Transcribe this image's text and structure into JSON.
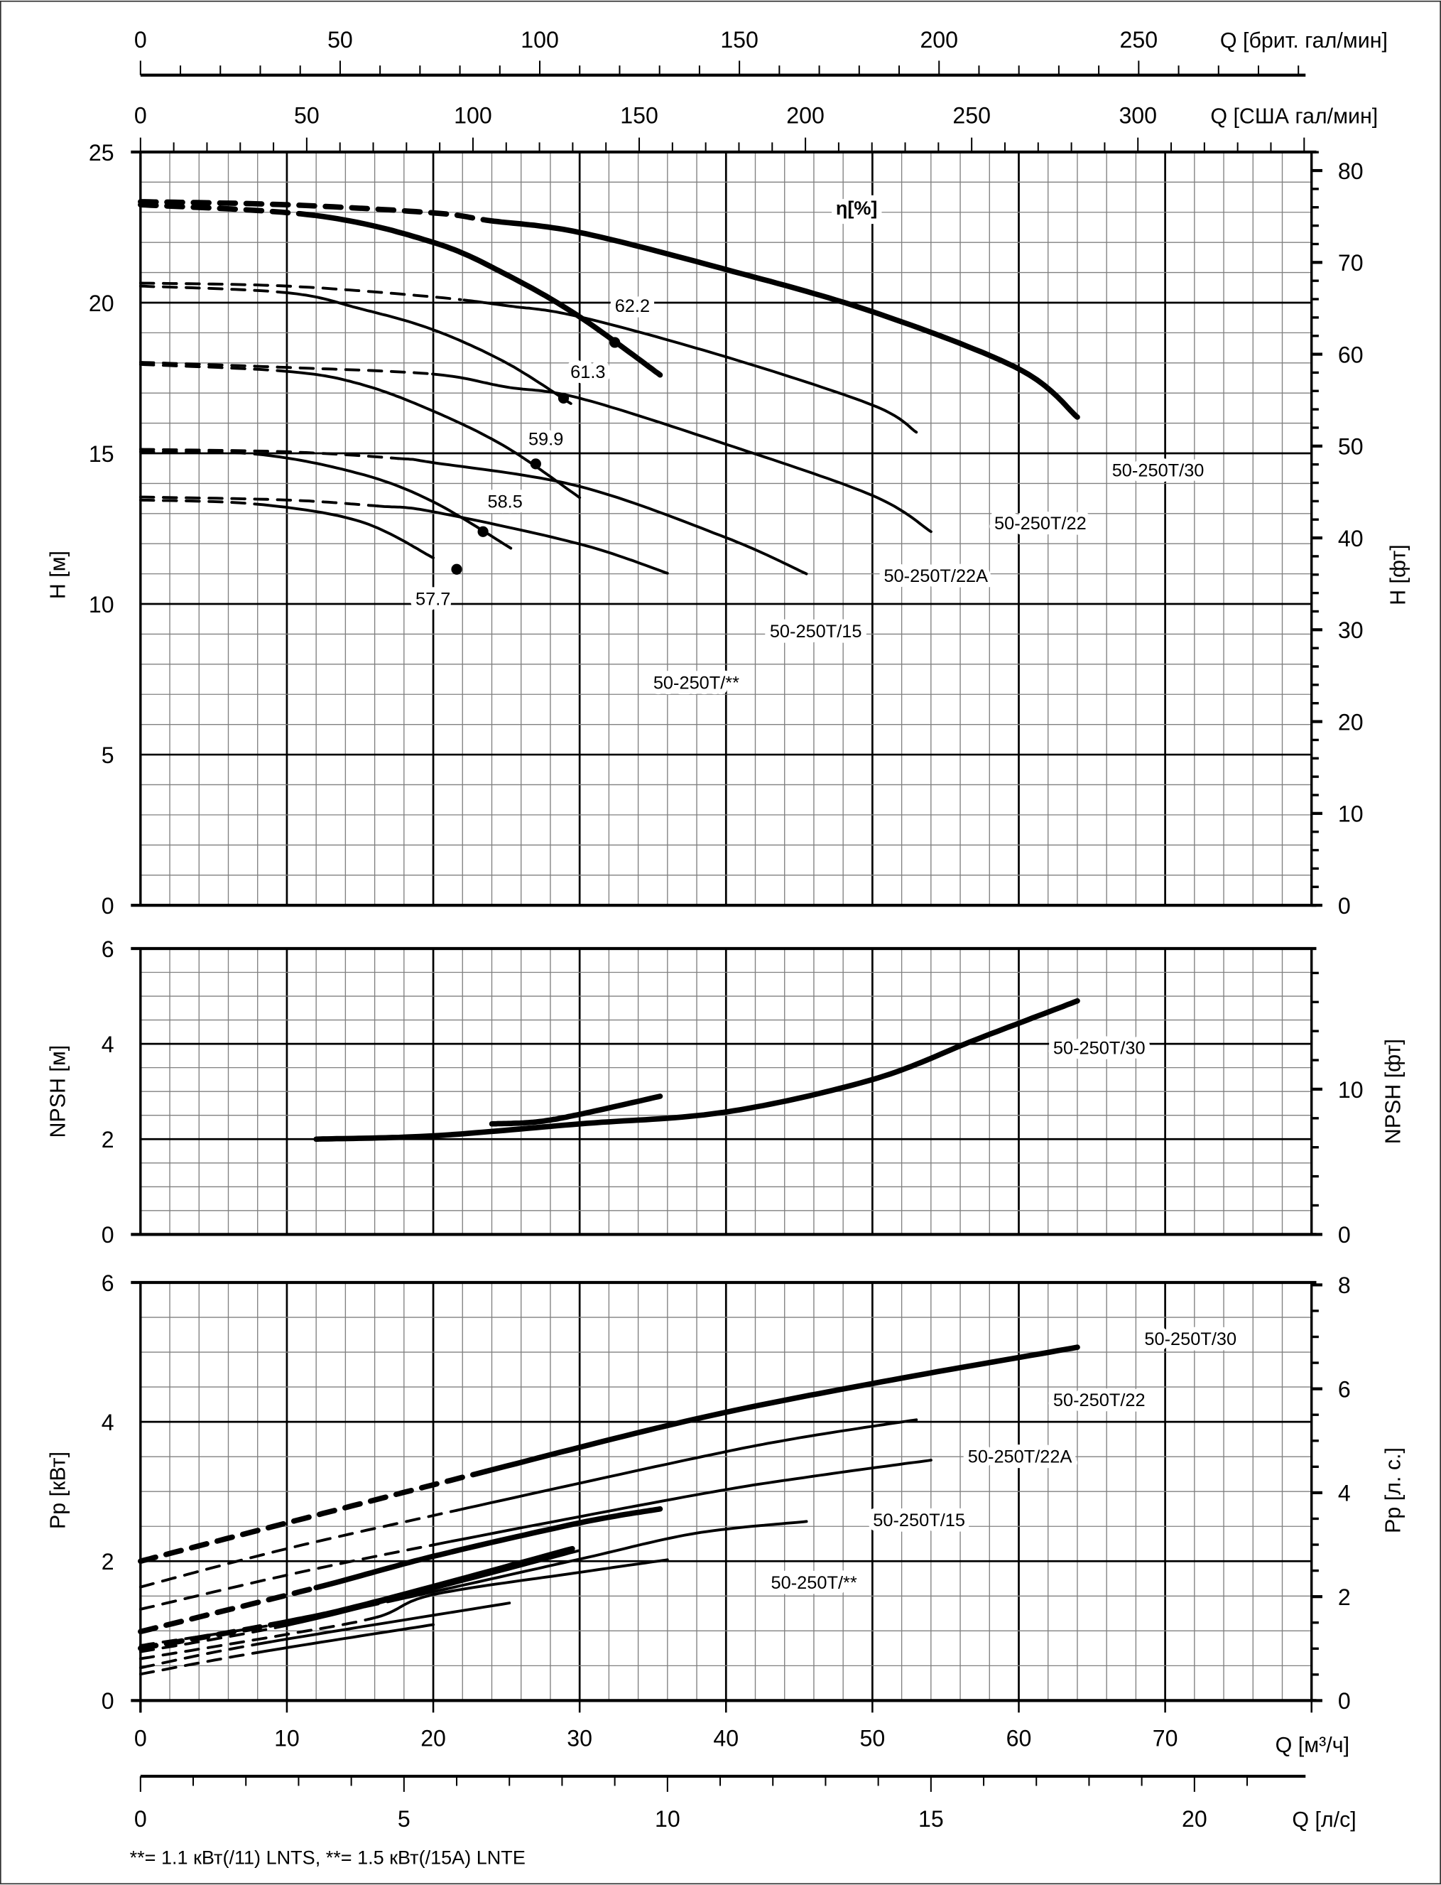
{
  "chart_data": {
    "type": "line",
    "top_axes": {
      "uk_gpm": {
        "label": "Q [брит. гал/мин]",
        "ticks": [
          0,
          50,
          100,
          150,
          200,
          250
        ]
      },
      "us_gpm": {
        "label": "Q [США гал/мин]",
        "ticks": [
          0,
          50,
          100,
          150,
          200,
          250,
          300
        ]
      }
    },
    "bottom_axes": {
      "m3h": {
        "label": "Q [м³/ч]",
        "ticks": [
          0,
          10,
          20,
          30,
          40,
          50,
          60,
          70
        ],
        "xlim": [
          0,
          80
        ]
      },
      "ls": {
        "label": "Q [л/с]",
        "ticks": [
          0,
          5,
          10,
          15,
          20
        ]
      }
    },
    "grid": true,
    "head": {
      "ylabel": "H [м]",
      "ylabel_right": "H [фт]",
      "ylim": [
        0,
        25
      ],
      "yticks": [
        0,
        5,
        10,
        15,
        20,
        25
      ],
      "yticks_right": [
        0,
        10,
        20,
        30,
        40,
        50,
        60,
        70,
        80
      ],
      "efficiency_label": "η[%]",
      "series": [
        {
          "name": "50-250T/30",
          "bold": true,
          "solid_from": 23.9,
          "points": [
            [
              0,
              23.35
            ],
            [
              10,
              23.25
            ],
            [
              20,
              22.98
            ],
            [
              23.9,
              22.72
            ],
            [
              30,
              22.33
            ],
            [
              40,
              21.1
            ],
            [
              50,
              19.7
            ],
            [
              60,
              17.8
            ],
            [
              64,
              16.2
            ]
          ]
        },
        {
          "name": "50-250T/22",
          "bold": false,
          "solid_from": 21.9,
          "points": [
            [
              0,
              20.65
            ],
            [
              10,
              20.55
            ],
            [
              20,
              20.19
            ],
            [
              25,
              19.9
            ],
            [
              30,
              19.53
            ],
            [
              40,
              18.2
            ],
            [
              50,
              16.6
            ],
            [
              53,
              15.7
            ]
          ]
        },
        {
          "name": "50-250T/22A",
          "bold": false,
          "solid_from": 19.95,
          "points": [
            [
              0,
              18.02
            ],
            [
              10,
              17.85
            ],
            [
              19.95,
              17.63
            ],
            [
              25,
              17.2
            ],
            [
              30,
              16.83
            ],
            [
              40,
              15.3
            ],
            [
              50,
              13.6
            ],
            [
              54,
              12.4
            ]
          ]
        },
        {
          "name": "50-250T/15",
          "bold": false,
          "solid_from": 17.6,
          "points": [
            [
              0,
              15.13
            ],
            [
              10,
              15.05
            ],
            [
              17.6,
              14.83
            ],
            [
              20,
              14.69
            ],
            [
              30,
              13.9
            ],
            [
              40,
              12.2
            ],
            [
              45.5,
              11.0
            ]
          ]
        },
        {
          "name": "50-250T/**",
          "bold": false,
          "solid_from": 16.2,
          "points": [
            [
              0,
              13.55
            ],
            [
              10,
              13.45
            ],
            [
              16.2,
              13.25
            ],
            [
              20,
              13.06
            ],
            [
              30,
              11.99
            ],
            [
              36,
              11.02
            ]
          ]
        },
        {
          "bold": true,
          "solid_from": 12,
          "points": [
            [
              0,
              23.25
            ],
            [
              12,
              22.89
            ],
            [
              20,
              22.0
            ],
            [
              25,
              20.93
            ],
            [
              30,
              19.53
            ],
            [
              35.5,
              17.6
            ]
          ],
          "bep": {
            "q": 32.4,
            "h": 18.68,
            "eta": "62.2"
          }
        },
        {
          "bold": false,
          "solid_from": 10,
          "points": [
            [
              0,
              20.55
            ],
            [
              10,
              20.33
            ],
            [
              15,
              19.8
            ],
            [
              20,
              19.1
            ],
            [
              25,
              18.0
            ],
            [
              29.4,
              16.65
            ]
          ],
          "bep": {
            "q": 28.9,
            "h": 16.83,
            "eta": "61.3"
          }
        },
        {
          "bold": false,
          "solid_from": 10,
          "points": [
            [
              0,
              17.95
            ],
            [
              10,
              17.72
            ],
            [
              15,
              17.3
            ],
            [
              20,
              16.4
            ],
            [
              25,
              15.2
            ],
            [
              30,
              13.53
            ]
          ],
          "bep": {
            "q": 27.0,
            "h": 14.65,
            "eta": "59.9"
          }
        },
        {
          "bold": false,
          "solid_from": 8,
          "points": [
            [
              0,
              15.05
            ],
            [
              8,
              14.97
            ],
            [
              15,
              14.32
            ],
            [
              20,
              13.39
            ],
            [
              25.3,
              11.85
            ]
          ],
          "bep": {
            "q": 23.4,
            "h": 12.4,
            "eta": "58.5"
          }
        },
        {
          "bold": false,
          "solid_from": 8,
          "points": [
            [
              0,
              13.45
            ],
            [
              8,
              13.31
            ],
            [
              15,
              12.74
            ],
            [
              20,
              11.53
            ]
          ],
          "bep": {
            "q": 21.6,
            "h": 11.15,
            "eta": "57.7"
          }
        }
      ]
    },
    "npsh": {
      "ylabel": "NPSH [м]",
      "ylabel_right": "NPSH [фт]",
      "ylim": [
        0,
        6
      ],
      "yticks": [
        0,
        2,
        4,
        6
      ],
      "yticks_right": [
        0,
        10
      ],
      "series": [
        {
          "name": "50-250T/30",
          "bold": true,
          "points": [
            [
              12,
              2.0
            ],
            [
              20,
              2.07
            ],
            [
              30,
              2.32
            ],
            [
              40,
              2.57
            ],
            [
              50,
              3.25
            ],
            [
              57,
              4.08
            ],
            [
              64,
              4.9
            ]
          ]
        },
        {
          "bold": true,
          "points": [
            [
              24,
              2.32
            ],
            [
              27,
              2.36
            ],
            [
              30,
              2.52
            ],
            [
              35.5,
              2.9
            ]
          ]
        }
      ]
    },
    "power": {
      "ylabel": "Pp [кВт]",
      "ylabel_right": "Pp [л. с.]",
      "ylim": [
        0,
        6
      ],
      "yticks": [
        0,
        2,
        4,
        6
      ],
      "yticks_right": [
        0,
        2,
        4,
        6,
        8
      ],
      "series": [
        {
          "name": "50-250T/30",
          "bold": true,
          "solid_from": 23.6,
          "points": [
            [
              0,
              2.0
            ],
            [
              10,
              2.55
            ],
            [
              23.6,
              3.29
            ],
            [
              37.9,
              4.04
            ],
            [
              50,
              4.55
            ],
            [
              64,
              5.07
            ]
          ]
        },
        {
          "name": "50-250T/22",
          "bold": false,
          "solid_from": 21.6,
          "points": [
            [
              0,
              1.63
            ],
            [
              10,
              2.18
            ],
            [
              21.6,
              2.73
            ],
            [
              37.9,
              3.48
            ],
            [
              45,
              3.77
            ],
            [
              53,
              4.03
            ]
          ]
        },
        {
          "name": "50-250T/22A",
          "bold": false,
          "solid_from": 19.9,
          "points": [
            [
              0,
              1.31
            ],
            [
              10,
              1.8
            ],
            [
              19.9,
              2.23
            ],
            [
              37.9,
              2.95
            ],
            [
              46,
              3.22
            ],
            [
              54,
              3.45
            ]
          ]
        },
        {
          "name": "50-250T/15",
          "bold": false,
          "solid_from": 17.6,
          "points": [
            [
              0,
              0.79
            ],
            [
              10,
              1.12
            ],
            [
              17.6,
              1.45
            ],
            [
              30,
              2.03
            ],
            [
              37.9,
              2.4
            ],
            [
              45.5,
              2.57
            ]
          ]
        },
        {
          "name": "50-250T/**",
          "bold": false,
          "solid_from": 16.2,
          "points": [
            [
              0,
              0.6
            ],
            [
              10,
              0.95
            ],
            [
              16.2,
              1.2
            ],
            [
              20,
              1.52
            ],
            [
              30,
              1.84
            ],
            [
              36,
              2.02
            ]
          ]
        },
        {
          "bold": true,
          "solid_from": 12,
          "points": [
            [
              0,
              0.99
            ],
            [
              12,
              1.62
            ],
            [
              20,
              2.07
            ],
            [
              30,
              2.55
            ],
            [
              35.5,
              2.75
            ]
          ]
        },
        {
          "bold": true,
          "solid_from": 10,
          "points": [
            [
              0,
              0.75
            ],
            [
              10,
              1.13
            ],
            [
              15.9,
              1.41
            ],
            [
              29.5,
              2.18
            ]
          ]
        },
        {
          "bold": false,
          "solid_from": 10,
          "points": [
            [
              0,
              0.7
            ],
            [
              10,
              1.08
            ],
            [
              20,
              1.6
            ],
            [
              29.9,
              2.15
            ]
          ]
        },
        {
          "bold": false,
          "solid_from": 8,
          "points": [
            [
              0,
              0.47
            ],
            [
              8,
              0.81
            ],
            [
              25.2,
              1.4
            ]
          ]
        },
        {
          "bold": false,
          "solid_from": 8,
          "points": [
            [
              0,
              0.38
            ],
            [
              8,
              0.69
            ],
            [
              20,
              1.09
            ]
          ]
        }
      ]
    },
    "footnote": "**= 1.1  кВт(/11) LNTS,  **= 1.5  кВт(/15A) LNTE",
    "colors": {
      "line": "#000000",
      "grid_major": "#000000",
      "grid_minor": "#808080"
    }
  }
}
